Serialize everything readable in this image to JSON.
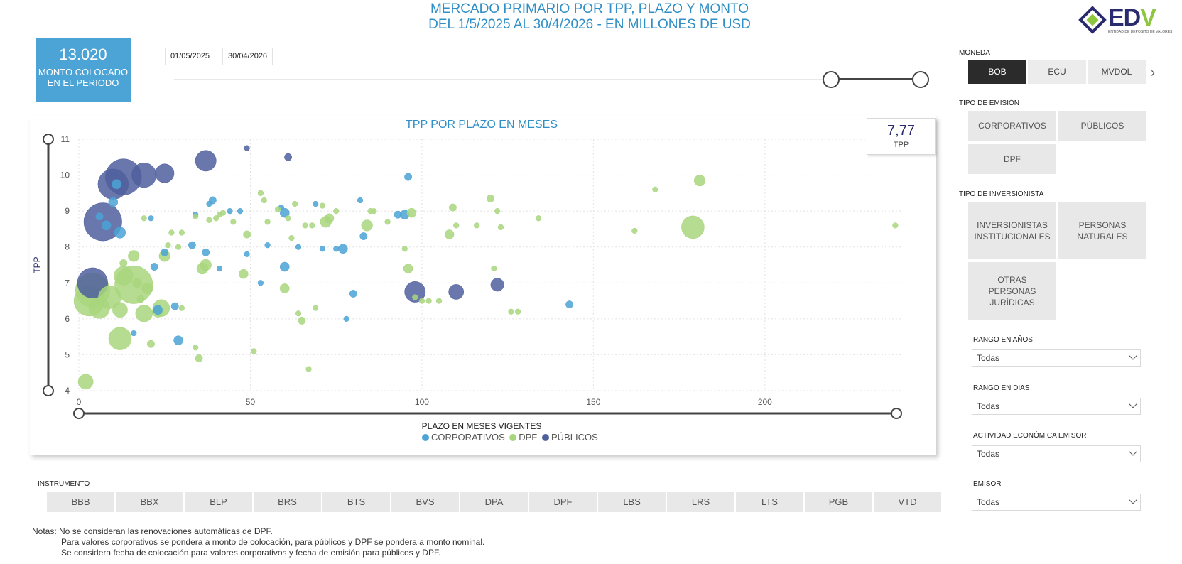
{
  "title": {
    "line1": "MERCADO PRIMARIO POR TPP, PLAZO Y MONTO",
    "line2": "DEL 1/5/2025 AL 30/4/2026 - EN MILLONES DE USD"
  },
  "logo": {
    "text_main": "ED",
    "text_v": "V",
    "subtitle": "ENTIDAD DE DEPOSITO DE VALORES"
  },
  "kpi": {
    "value": "13.020",
    "label_line1": "MONTO COLOCADO",
    "label_line2": "EN EL PERIODO"
  },
  "date_range": {
    "start": "01/05/2025",
    "end": "30/04/2026"
  },
  "tpp_card": {
    "value": "7,77",
    "label": "TPP"
  },
  "moneda": {
    "label": "MONEDA",
    "options": [
      {
        "label": "BOB",
        "active": true
      },
      {
        "label": "ECU",
        "active": false
      },
      {
        "label": "MVDOL",
        "active": false
      }
    ]
  },
  "tipo_emision": {
    "label": "TIPO DE EMISIÓN",
    "options": [
      "CORPORATIVOS",
      "PÚBLICOS",
      "DPF"
    ]
  },
  "tipo_inversionista": {
    "label": "TIPO DE INVERSIONISTA",
    "options": [
      "INVERSIONISTAS INSTITUCIONALES",
      "PERSONAS NATURALES",
      "OTRAS PERSONAS JURÍDICAS"
    ]
  },
  "filters": [
    {
      "label": "RANGO EN AÑOS",
      "value": "Todas"
    },
    {
      "label": "RANGO EN DÍAS",
      "value": "Todas"
    },
    {
      "label": "ACTIVIDAD ECONÓMICA EMISOR",
      "value": "Todas"
    },
    {
      "label": "EMISOR",
      "value": "Todas"
    }
  ],
  "instrumento": {
    "label": "INSTRUMENTO",
    "options": [
      "BBB",
      "BBX",
      "BLP",
      "BRS",
      "BTS",
      "BVS",
      "DPA",
      "DPF",
      "LBS",
      "LRS",
      "LTS",
      "PGB",
      "VTD"
    ]
  },
  "notes": {
    "line1": "Notas: No se consideran las renovaciones automáticas de DPF.",
    "line2": "Para valores corporativos se pondera a monto de colocación, para públicos y DPF se pondera a monto nominal.",
    "line3": "Se considera fecha de colocación para valores corporativos y fecha de emisión para públicos y DPF."
  },
  "colors": {
    "corporativos": "#4ba3d6",
    "dpf": "#a8d67c",
    "publicos": "#4f5f9e",
    "accent": "#2f8fc6"
  },
  "chart_data": {
    "type": "scatter",
    "title": "TPP POR PLAZO EN MESES",
    "xlabel": "PLAZO EN MESES VIGENTES",
    "ylabel": "TPP",
    "xlim": [
      0,
      240
    ],
    "ylim": [
      4,
      11
    ],
    "xticks": [
      0,
      50,
      100,
      150,
      200
    ],
    "yticks": [
      4,
      5,
      6,
      7,
      8,
      9,
      10,
      11
    ],
    "grid": true,
    "legend": "bottom-center",
    "series": [
      {
        "name": "CORPORATIVOS",
        "points": [
          {
            "x": 6,
            "y": 8.85,
            "s": 2
          },
          {
            "x": 8,
            "y": 8.6,
            "s": 3
          },
          {
            "x": 10,
            "y": 9.25,
            "s": 3
          },
          {
            "x": 11,
            "y": 9.75,
            "s": 3
          },
          {
            "x": 12,
            "y": 8.4,
            "s": 4
          },
          {
            "x": 16,
            "y": 5.6,
            "s": 1
          },
          {
            "x": 21,
            "y": 8.8,
            "s": 1
          },
          {
            "x": 22,
            "y": 7.45,
            "s": 2
          },
          {
            "x": 23,
            "y": 6.25,
            "s": 3
          },
          {
            "x": 25,
            "y": 7.85,
            "s": 2
          },
          {
            "x": 28,
            "y": 6.35,
            "s": 2
          },
          {
            "x": 29,
            "y": 5.4,
            "s": 3
          },
          {
            "x": 33,
            "y": 8.05,
            "s": 2
          },
          {
            "x": 34,
            "y": 8.9,
            "s": 1
          },
          {
            "x": 37,
            "y": 7.85,
            "s": 2
          },
          {
            "x": 38,
            "y": 9.2,
            "s": 1
          },
          {
            "x": 39,
            "y": 9.3,
            "s": 2
          },
          {
            "x": 41,
            "y": 7.4,
            "s": 1
          },
          {
            "x": 44,
            "y": 9.0,
            "s": 1
          },
          {
            "x": 47,
            "y": 9.0,
            "s": 1
          },
          {
            "x": 49,
            "y": 7.8,
            "s": 1
          },
          {
            "x": 53,
            "y": 7.0,
            "s": 1
          },
          {
            "x": 55,
            "y": 8.05,
            "s": 1
          },
          {
            "x": 59,
            "y": 9.1,
            "s": 1
          },
          {
            "x": 60,
            "y": 8.95,
            "s": 3
          },
          {
            "x": 60,
            "y": 7.45,
            "s": 3
          },
          {
            "x": 64,
            "y": 8.0,
            "s": 1
          },
          {
            "x": 69,
            "y": 9.2,
            "s": 1
          },
          {
            "x": 71,
            "y": 7.95,
            "s": 1
          },
          {
            "x": 75,
            "y": 7.95,
            "s": 1
          },
          {
            "x": 77,
            "y": 7.95,
            "s": 3
          },
          {
            "x": 78,
            "y": 6.0,
            "s": 1
          },
          {
            "x": 80,
            "y": 6.7,
            "s": 2
          },
          {
            "x": 82,
            "y": 9.3,
            "s": 1
          },
          {
            "x": 83,
            "y": 8.3,
            "s": 2
          },
          {
            "x": 93,
            "y": 8.9,
            "s": 2
          },
          {
            "x": 95,
            "y": 8.9,
            "s": 3
          },
          {
            "x": 96,
            "y": 9.95,
            "s": 2
          },
          {
            "x": 143,
            "y": 6.4,
            "s": 2
          }
        ]
      },
      {
        "name": "DPF",
        "points": [
          {
            "x": 2,
            "y": 4.25,
            "s": 6
          },
          {
            "x": 3,
            "y": 6.5,
            "s": 14
          },
          {
            "x": 4,
            "y": 6.8,
            "s": 16
          },
          {
            "x": 6,
            "y": 6.3,
            "s": 9
          },
          {
            "x": 9,
            "y": 6.6,
            "s": 10
          },
          {
            "x": 12,
            "y": 6.25,
            "s": 6
          },
          {
            "x": 12,
            "y": 5.45,
            "s": 10
          },
          {
            "x": 13,
            "y": 7.2,
            "s": 8
          },
          {
            "x": 13,
            "y": 7.55,
            "s": 2
          },
          {
            "x": 16,
            "y": 7.75,
            "s": 4
          },
          {
            "x": 16,
            "y": 6.95,
            "s": 18
          },
          {
            "x": 17,
            "y": 7.0,
            "s": 3
          },
          {
            "x": 18,
            "y": 6.55,
            "s": 2
          },
          {
            "x": 19,
            "y": 6.15,
            "s": 7
          },
          {
            "x": 19,
            "y": 8.8,
            "s": 1
          },
          {
            "x": 20,
            "y": 6.85,
            "s": 4
          },
          {
            "x": 21,
            "y": 5.3,
            "s": 2
          },
          {
            "x": 23,
            "y": 6.2,
            "s": 4
          },
          {
            "x": 24,
            "y": 6.3,
            "s": 7
          },
          {
            "x": 25,
            "y": 7.75,
            "s": 4
          },
          {
            "x": 26,
            "y": 8.05,
            "s": 1
          },
          {
            "x": 27,
            "y": 8.4,
            "s": 1
          },
          {
            "x": 29,
            "y": 8.0,
            "s": 1
          },
          {
            "x": 30,
            "y": 8.4,
            "s": 1
          },
          {
            "x": 30,
            "y": 6.3,
            "s": 1
          },
          {
            "x": 34,
            "y": 8.85,
            "s": 1
          },
          {
            "x": 34,
            "y": 5.2,
            "s": 1
          },
          {
            "x": 35,
            "y": 4.9,
            "s": 2
          },
          {
            "x": 36,
            "y": 7.4,
            "s": 4
          },
          {
            "x": 37,
            "y": 7.5,
            "s": 4
          },
          {
            "x": 38,
            "y": 8.75,
            "s": 1
          },
          {
            "x": 40,
            "y": 8.8,
            "s": 1
          },
          {
            "x": 41,
            "y": 8.9,
            "s": 1
          },
          {
            "x": 42,
            "y": 8.95,
            "s": 1
          },
          {
            "x": 45,
            "y": 8.7,
            "s": 1
          },
          {
            "x": 48,
            "y": 7.25,
            "s": 3
          },
          {
            "x": 49,
            "y": 8.35,
            "s": 2
          },
          {
            "x": 51,
            "y": 5.1,
            "s": 1
          },
          {
            "x": 53,
            "y": 9.5,
            "s": 1
          },
          {
            "x": 54,
            "y": 9.3,
            "s": 1
          },
          {
            "x": 55,
            "y": 8.7,
            "s": 1
          },
          {
            "x": 58,
            "y": 9.05,
            "s": 1
          },
          {
            "x": 60,
            "y": 6.85,
            "s": 3
          },
          {
            "x": 61,
            "y": 8.8,
            "s": 1
          },
          {
            "x": 62,
            "y": 8.25,
            "s": 1
          },
          {
            "x": 63,
            "y": 9.2,
            "s": 1
          },
          {
            "x": 64,
            "y": 6.15,
            "s": 1
          },
          {
            "x": 65,
            "y": 5.95,
            "s": 2
          },
          {
            "x": 66,
            "y": 8.6,
            "s": 1
          },
          {
            "x": 67,
            "y": 4.6,
            "s": 1
          },
          {
            "x": 68,
            "y": 8.6,
            "s": 1
          },
          {
            "x": 69,
            "y": 6.3,
            "s": 1
          },
          {
            "x": 71,
            "y": 9.15,
            "s": 1
          },
          {
            "x": 72,
            "y": 8.7,
            "s": 4
          },
          {
            "x": 73,
            "y": 8.8,
            "s": 3
          },
          {
            "x": 75,
            "y": 9.0,
            "s": 1
          },
          {
            "x": 84,
            "y": 8.6,
            "s": 4
          },
          {
            "x": 85,
            "y": 9.0,
            "s": 1
          },
          {
            "x": 86,
            "y": 9.0,
            "s": 1
          },
          {
            "x": 90,
            "y": 8.7,
            "s": 1
          },
          {
            "x": 95,
            "y": 7.95,
            "s": 1
          },
          {
            "x": 96,
            "y": 7.4,
            "s": 3
          },
          {
            "x": 97,
            "y": 8.95,
            "s": 3
          },
          {
            "x": 98,
            "y": 6.6,
            "s": 1
          },
          {
            "x": 100,
            "y": 6.5,
            "s": 1
          },
          {
            "x": 102,
            "y": 6.5,
            "s": 1
          },
          {
            "x": 105,
            "y": 6.5,
            "s": 1
          },
          {
            "x": 108,
            "y": 8.35,
            "s": 3
          },
          {
            "x": 109,
            "y": 9.1,
            "s": 2
          },
          {
            "x": 110,
            "y": 8.6,
            "s": 1
          },
          {
            "x": 116,
            "y": 8.6,
            "s": 1
          },
          {
            "x": 120,
            "y": 9.35,
            "s": 2
          },
          {
            "x": 121,
            "y": 7.4,
            "s": 1
          },
          {
            "x": 122,
            "y": 9.0,
            "s": 1
          },
          {
            "x": 123,
            "y": 8.55,
            "s": 1
          },
          {
            "x": 126,
            "y": 6.2,
            "s": 1
          },
          {
            "x": 128,
            "y": 6.2,
            "s": 1
          },
          {
            "x": 134,
            "y": 8.8,
            "s": 1
          },
          {
            "x": 162,
            "y": 8.45,
            "s": 1
          },
          {
            "x": 168,
            "y": 9.6,
            "s": 1
          },
          {
            "x": 179,
            "y": 8.55,
            "s": 10
          },
          {
            "x": 181,
            "y": 9.85,
            "s": 4
          },
          {
            "x": 238,
            "y": 8.6,
            "s": 1
          }
        ]
      },
      {
        "name": "PÚBLICOS",
        "points": [
          {
            "x": 4,
            "y": 7.0,
            "s": 14
          },
          {
            "x": 7,
            "y": 8.7,
            "s": 18
          },
          {
            "x": 10,
            "y": 9.75,
            "s": 14
          },
          {
            "x": 13,
            "y": 9.95,
            "s": 17
          },
          {
            "x": 19,
            "y": 10.0,
            "s": 11
          },
          {
            "x": 25,
            "y": 10.05,
            "s": 8
          },
          {
            "x": 37,
            "y": 10.4,
            "s": 9
          },
          {
            "x": 49,
            "y": 10.75,
            "s": 1
          },
          {
            "x": 61,
            "y": 10.5,
            "s": 2
          },
          {
            "x": 98,
            "y": 6.75,
            "s": 9
          },
          {
            "x": 110,
            "y": 6.75,
            "s": 6
          },
          {
            "x": 122,
            "y": 6.95,
            "s": 5
          }
        ]
      }
    ]
  }
}
